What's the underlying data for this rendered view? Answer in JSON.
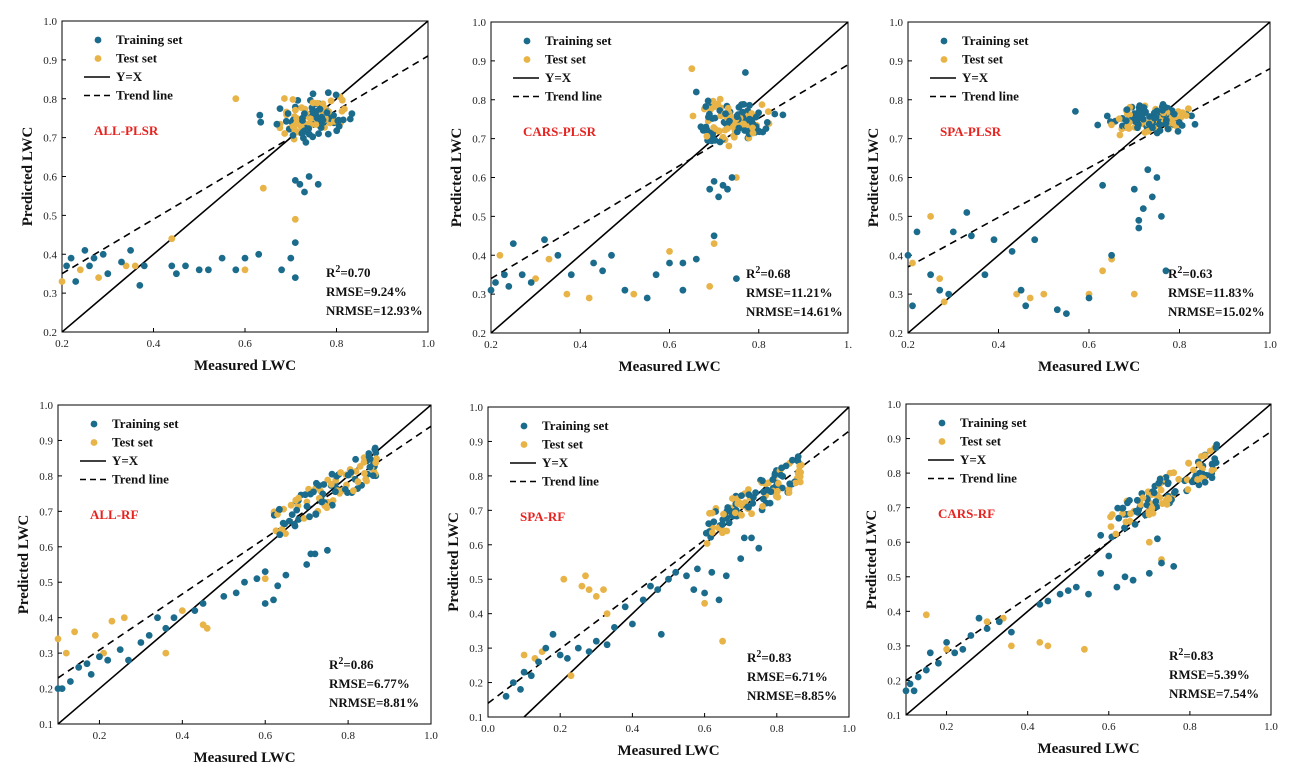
{
  "colors": {
    "training": "#1b6b8c",
    "test": "#e8b347",
    "model_label": "#e8231f",
    "line": "#000000"
  },
  "chart_data": [
    {
      "type": "scatter",
      "model": "ALL-PLSR",
      "xlabel": "Measured LWC",
      "ylabel": "Predicted LWC",
      "xlim": [
        0.2,
        1.0
      ],
      "ylim": [
        0.2,
        1.0
      ],
      "xticks": [
        "0.2",
        "0.4",
        "0.6",
        "0.8",
        "1.0"
      ],
      "yticks": [
        "0.2",
        "0.3",
        "0.4",
        "0.5",
        "0.6",
        "0.7",
        "0.8",
        "0.9",
        "1.0"
      ],
      "legend": [
        "Training set",
        "Test set",
        "Y=X",
        "Trend line"
      ],
      "trend": [
        0.2,
        0.35,
        1.0,
        0.91
      ],
      "stats": {
        "r2_prefix": "R",
        "r2_value": "=0.70",
        "rmse": "RMSE=9.24%",
        "nrmse": "NRMSE=12.93%"
      },
      "main_cluster": {
        "x": [
          0.62,
          0.87
        ],
        "y": [
          0.67,
          0.83
        ],
        "n_train": 70,
        "n_test": 55
      },
      "extra_train": [
        [
          0.21,
          0.37
        ],
        [
          0.22,
          0.39
        ],
        [
          0.23,
          0.33
        ],
        [
          0.25,
          0.41
        ],
        [
          0.27,
          0.39
        ],
        [
          0.29,
          0.4
        ],
        [
          0.3,
          0.35
        ],
        [
          0.33,
          0.38
        ],
        [
          0.35,
          0.41
        ],
        [
          0.37,
          0.32
        ],
        [
          0.44,
          0.37
        ],
        [
          0.45,
          0.35
        ],
        [
          0.47,
          0.37
        ],
        [
          0.5,
          0.36
        ],
        [
          0.52,
          0.36
        ],
        [
          0.55,
          0.39
        ],
        [
          0.58,
          0.36
        ],
        [
          0.6,
          0.39
        ],
        [
          0.63,
          0.4
        ],
        [
          0.68,
          0.36
        ],
        [
          0.71,
          0.34
        ],
        [
          0.71,
          0.43
        ],
        [
          0.72,
          0.58
        ],
        [
          0.73,
          0.56
        ],
        [
          0.74,
          0.6
        ],
        [
          0.71,
          0.59
        ],
        [
          0.76,
          0.58
        ],
        [
          0.7,
          0.39
        ],
        [
          0.26,
          0.37
        ],
        [
          0.38,
          0.37
        ]
      ],
      "extra_test": [
        [
          0.2,
          0.33
        ],
        [
          0.24,
          0.36
        ],
        [
          0.28,
          0.34
        ],
        [
          0.34,
          0.37
        ],
        [
          0.44,
          0.44
        ],
        [
          0.6,
          0.36
        ],
        [
          0.64,
          0.57
        ],
        [
          0.71,
          0.49
        ],
        [
          0.58,
          0.8
        ],
        [
          0.36,
          0.37
        ]
      ]
    },
    {
      "type": "scatter",
      "model": "CARS-PLSR",
      "xlabel": "Measured LWC",
      "ylabel": "Predicted LWC",
      "xlim": [
        0.2,
        1.0
      ],
      "ylim": [
        0.2,
        1.0
      ],
      "xticks": [
        "0.2",
        "0.4",
        "0.6",
        "0.8",
        "1."
      ],
      "yticks": [
        "0.2",
        "0.3",
        "0.4",
        "0.5",
        "0.6",
        "0.7",
        "0.8",
        "0.9",
        "1.0"
      ],
      "legend": [
        "Training set",
        "Test set",
        "Y=X",
        "Trend line"
      ],
      "trend": [
        0.2,
        0.34,
        1.0,
        0.89
      ],
      "stats": {
        "r2_prefix": "R",
        "r2_value": "=0.68",
        "rmse": "RMSE=11.21%",
        "nrmse": "NRMSE=14.61%"
      },
      "main_cluster": {
        "x": [
          0.62,
          0.87
        ],
        "y": [
          0.66,
          0.82
        ],
        "n_train": 70,
        "n_test": 55
      },
      "extra_train": [
        [
          0.2,
          0.31
        ],
        [
          0.21,
          0.33
        ],
        [
          0.23,
          0.35
        ],
        [
          0.24,
          0.32
        ],
        [
          0.25,
          0.43
        ],
        [
          0.27,
          0.35
        ],
        [
          0.29,
          0.33
        ],
        [
          0.32,
          0.44
        ],
        [
          0.35,
          0.4
        ],
        [
          0.38,
          0.35
        ],
        [
          0.43,
          0.38
        ],
        [
          0.45,
          0.36
        ],
        [
          0.47,
          0.4
        ],
        [
          0.5,
          0.31
        ],
        [
          0.55,
          0.29
        ],
        [
          0.57,
          0.35
        ],
        [
          0.6,
          0.38
        ],
        [
          0.63,
          0.38
        ],
        [
          0.66,
          0.39
        ],
        [
          0.7,
          0.45
        ],
        [
          0.71,
          0.55
        ],
        [
          0.72,
          0.58
        ],
        [
          0.73,
          0.57
        ],
        [
          0.74,
          0.6
        ],
        [
          0.75,
          0.34
        ],
        [
          0.69,
          0.57
        ],
        [
          0.7,
          0.59
        ],
        [
          0.66,
          0.82
        ],
        [
          0.63,
          0.31
        ],
        [
          0.77,
          0.87
        ]
      ],
      "extra_test": [
        [
          0.22,
          0.4
        ],
        [
          0.3,
          0.34
        ],
        [
          0.33,
          0.39
        ],
        [
          0.37,
          0.3
        ],
        [
          0.42,
          0.29
        ],
        [
          0.52,
          0.3
        ],
        [
          0.6,
          0.41
        ],
        [
          0.65,
          0.88
        ],
        [
          0.7,
          0.43
        ],
        [
          0.69,
          0.32
        ],
        [
          0.75,
          0.6
        ]
      ]
    },
    {
      "type": "scatter",
      "model": "SPA-PLSR",
      "xlabel": "Measured LWC",
      "ylabel": "Predicted LWC",
      "xlim": [
        0.2,
        1.0
      ],
      "ylim": [
        0.2,
        1.0
      ],
      "xticks": [
        "0.2",
        "0.4",
        "0.6",
        "0.8",
        "1.0"
      ],
      "yticks": [
        "0.2",
        "0.3",
        "0.4",
        "0.5",
        "0.6",
        "0.7",
        "0.8",
        "0.9",
        "1.0"
      ],
      "legend": [
        "Training set",
        "Test set",
        "Y=X",
        "Trend line"
      ],
      "trend": [
        0.2,
        0.37,
        1.0,
        0.88
      ],
      "stats": {
        "r2_prefix": "R",
        "r2_value": "=0.63",
        "rmse": "RMSE=11.83%",
        "nrmse": "NRMSE=15.02%"
      },
      "main_cluster": {
        "x": [
          0.6,
          0.87
        ],
        "y": [
          0.7,
          0.8
        ],
        "n_train": 75,
        "n_test": 55
      },
      "extra_train": [
        [
          0.2,
          0.4
        ],
        [
          0.21,
          0.27
        ],
        [
          0.22,
          0.46
        ],
        [
          0.25,
          0.35
        ],
        [
          0.27,
          0.31
        ],
        [
          0.29,
          0.3
        ],
        [
          0.3,
          0.46
        ],
        [
          0.33,
          0.51
        ],
        [
          0.34,
          0.45
        ],
        [
          0.37,
          0.35
        ],
        [
          0.43,
          0.41
        ],
        [
          0.45,
          0.31
        ],
        [
          0.46,
          0.27
        ],
        [
          0.48,
          0.44
        ],
        [
          0.53,
          0.26
        ],
        [
          0.55,
          0.25
        ],
        [
          0.6,
          0.29
        ],
        [
          0.63,
          0.58
        ],
        [
          0.65,
          0.4
        ],
        [
          0.7,
          0.57
        ],
        [
          0.71,
          0.49
        ],
        [
          0.72,
          0.52
        ],
        [
          0.73,
          0.62
        ],
        [
          0.74,
          0.55
        ],
        [
          0.75,
          0.6
        ],
        [
          0.76,
          0.5
        ],
        [
          0.77,
          0.36
        ],
        [
          0.57,
          0.77
        ],
        [
          0.71,
          0.47
        ],
        [
          0.39,
          0.44
        ]
      ],
      "extra_test": [
        [
          0.21,
          0.38
        ],
        [
          0.25,
          0.5
        ],
        [
          0.27,
          0.34
        ],
        [
          0.28,
          0.28
        ],
        [
          0.44,
          0.3
        ],
        [
          0.47,
          0.29
        ],
        [
          0.5,
          0.3
        ],
        [
          0.6,
          0.3
        ],
        [
          0.63,
          0.36
        ],
        [
          0.7,
          0.3
        ],
        [
          0.65,
          0.39
        ]
      ]
    },
    {
      "type": "scatter",
      "model": "ALL-RF",
      "xlabel": "Measured LWC",
      "ylabel": "Predicted LWC",
      "xlim": [
        0.1,
        1.0
      ],
      "ylim": [
        0.1,
        1.0
      ],
      "xticks": [
        "0.2",
        "0.4",
        "0.6",
        "0.8",
        "1.0"
      ],
      "yticks": [
        "0.1",
        "0.2",
        "0.3",
        "0.4",
        "0.5",
        "0.6",
        "0.7",
        "0.8",
        "0.9",
        "1.0"
      ],
      "legend": [
        "Training set",
        "Test set",
        "Y=X",
        "Trend line"
      ],
      "trend": [
        0.1,
        0.23,
        1.0,
        0.94
      ],
      "stats": {
        "r2_prefix": "R",
        "r2_value": "=0.86",
        "rmse": "RMSE=6.77%",
        "nrmse": "NRMSE=8.81%"
      },
      "main_cluster": {
        "x": [
          0.62,
          0.87
        ],
        "y": [
          0.66,
          0.84
        ],
        "n_train": 60,
        "n_test": 50,
        "diagonal": true
      },
      "extra_train": [
        [
          0.1,
          0.2
        ],
        [
          0.11,
          0.2
        ],
        [
          0.13,
          0.22
        ],
        [
          0.15,
          0.26
        ],
        [
          0.17,
          0.27
        ],
        [
          0.18,
          0.24
        ],
        [
          0.2,
          0.29
        ],
        [
          0.22,
          0.28
        ],
        [
          0.25,
          0.31
        ],
        [
          0.27,
          0.28
        ],
        [
          0.3,
          0.33
        ],
        [
          0.32,
          0.35
        ],
        [
          0.34,
          0.4
        ],
        [
          0.36,
          0.37
        ],
        [
          0.38,
          0.4
        ],
        [
          0.43,
          0.42
        ],
        [
          0.45,
          0.44
        ],
        [
          0.5,
          0.46
        ],
        [
          0.53,
          0.47
        ],
        [
          0.55,
          0.5
        ],
        [
          0.58,
          0.51
        ],
        [
          0.6,
          0.53
        ],
        [
          0.62,
          0.45
        ],
        [
          0.63,
          0.49
        ],
        [
          0.65,
          0.52
        ],
        [
          0.7,
          0.55
        ],
        [
          0.72,
          0.58
        ],
        [
          0.75,
          0.59
        ],
        [
          0.71,
          0.58
        ],
        [
          0.6,
          0.44
        ]
      ],
      "extra_test": [
        [
          0.1,
          0.34
        ],
        [
          0.12,
          0.3
        ],
        [
          0.14,
          0.36
        ],
        [
          0.19,
          0.35
        ],
        [
          0.21,
          0.3
        ],
        [
          0.23,
          0.39
        ],
        [
          0.26,
          0.4
        ],
        [
          0.36,
          0.3
        ],
        [
          0.4,
          0.42
        ],
        [
          0.45,
          0.38
        ],
        [
          0.46,
          0.37
        ],
        [
          0.6,
          0.51
        ]
      ]
    },
    {
      "type": "scatter",
      "model": "SPA-RF",
      "xlabel": "Measured LWC",
      "ylabel": "Predicted LWC",
      "xlim": [
        0.0,
        1.0
      ],
      "ylim": [
        0.1,
        1.0
      ],
      "xticks": [
        "0.0",
        "0.2",
        "0.4",
        "0.6",
        "0.8",
        "1.0"
      ],
      "yticks": [
        "0.1",
        "0.2",
        "0.3",
        "0.4",
        "0.5",
        "0.6",
        "0.7",
        "0.8",
        "0.9",
        "1.0"
      ],
      "legend": [
        "Training set",
        "Test set",
        "Y=X",
        "Trend line"
      ],
      "trend": [
        0.0,
        0.14,
        1.0,
        0.93
      ],
      "stats": {
        "r2_prefix": "R",
        "r2_value": "=0.83",
        "rmse": "RMSE=6.71%",
        "nrmse": "NRMSE=8.85%"
      },
      "main_cluster": {
        "x": [
          0.6,
          0.87
        ],
        "y": [
          0.64,
          0.82
        ],
        "n_train": 60,
        "n_test": 55,
        "diagonal": true
      },
      "extra_train": [
        [
          0.05,
          0.16
        ],
        [
          0.07,
          0.2
        ],
        [
          0.09,
          0.18
        ],
        [
          0.1,
          0.23
        ],
        [
          0.12,
          0.22
        ],
        [
          0.14,
          0.26
        ],
        [
          0.16,
          0.3
        ],
        [
          0.18,
          0.34
        ],
        [
          0.2,
          0.28
        ],
        [
          0.22,
          0.27
        ],
        [
          0.25,
          0.3
        ],
        [
          0.28,
          0.29
        ],
        [
          0.3,
          0.32
        ],
        [
          0.33,
          0.31
        ],
        [
          0.35,
          0.36
        ],
        [
          0.38,
          0.42
        ],
        [
          0.4,
          0.37
        ],
        [
          0.43,
          0.44
        ],
        [
          0.45,
          0.48
        ],
        [
          0.47,
          0.47
        ],
        [
          0.5,
          0.5
        ],
        [
          0.52,
          0.52
        ],
        [
          0.55,
          0.51
        ],
        [
          0.58,
          0.53
        ],
        [
          0.6,
          0.46
        ],
        [
          0.62,
          0.52
        ],
        [
          0.66,
          0.51
        ],
        [
          0.7,
          0.56
        ],
        [
          0.71,
          0.62
        ],
        [
          0.73,
          0.62
        ],
        [
          0.75,
          0.59
        ],
        [
          0.57,
          0.47
        ],
        [
          0.48,
          0.34
        ],
        [
          0.64,
          0.44
        ]
      ],
      "extra_test": [
        [
          0.1,
          0.28
        ],
        [
          0.13,
          0.27
        ],
        [
          0.15,
          0.29
        ],
        [
          0.21,
          0.5
        ],
        [
          0.23,
          0.22
        ],
        [
          0.26,
          0.48
        ],
        [
          0.27,
          0.51
        ],
        [
          0.28,
          0.47
        ],
        [
          0.3,
          0.45
        ],
        [
          0.32,
          0.47
        ],
        [
          0.6,
          0.43
        ],
        [
          0.65,
          0.32
        ],
        [
          0.33,
          0.4
        ]
      ]
    },
    {
      "type": "scatter",
      "model": "CARS-RF",
      "xlabel": "Measured LWC",
      "ylabel": "Predicted LWC",
      "xlim": [
        0.1,
        1.0
      ],
      "ylim": [
        0.1,
        1.0
      ],
      "xticks": [
        "0.2",
        "0.4",
        "0.6",
        "0.8",
        "1.0"
      ],
      "yticks": [
        "0.1",
        "0.2",
        "0.3",
        "0.4",
        "0.5",
        "0.6",
        "0.7",
        "0.8",
        "0.9",
        "1.0"
      ],
      "legend": [
        "Training set",
        "Test set",
        "Y=X",
        "Trend line"
      ],
      "trend": [
        0.1,
        0.2,
        1.0,
        0.92
      ],
      "stats": {
        "r2_prefix": "R",
        "r2_value": "=0.83",
        "rmse": "RMSE=5.39%",
        "nrmse": "NRMSE=7.54%"
      },
      "main_cluster": {
        "x": [
          0.6,
          0.87
        ],
        "y": [
          0.65,
          0.84
        ],
        "n_train": 60,
        "n_test": 55,
        "diagonal": true
      },
      "extra_train": [
        [
          0.1,
          0.17
        ],
        [
          0.11,
          0.19
        ],
        [
          0.13,
          0.21
        ],
        [
          0.15,
          0.23
        ],
        [
          0.16,
          0.28
        ],
        [
          0.18,
          0.25
        ],
        [
          0.2,
          0.31
        ],
        [
          0.22,
          0.28
        ],
        [
          0.24,
          0.29
        ],
        [
          0.26,
          0.33
        ],
        [
          0.28,
          0.38
        ],
        [
          0.3,
          0.35
        ],
        [
          0.33,
          0.37
        ],
        [
          0.36,
          0.34
        ],
        [
          0.43,
          0.42
        ],
        [
          0.45,
          0.43
        ],
        [
          0.48,
          0.45
        ],
        [
          0.5,
          0.46
        ],
        [
          0.52,
          0.47
        ],
        [
          0.55,
          0.45
        ],
        [
          0.58,
          0.51
        ],
        [
          0.6,
          0.56
        ],
        [
          0.62,
          0.47
        ],
        [
          0.64,
          0.5
        ],
        [
          0.66,
          0.49
        ],
        [
          0.7,
          0.51
        ],
        [
          0.73,
          0.54
        ],
        [
          0.76,
          0.53
        ],
        [
          0.72,
          0.61
        ],
        [
          0.58,
          0.62
        ],
        [
          0.12,
          0.17
        ]
      ],
      "extra_test": [
        [
          0.15,
          0.39
        ],
        [
          0.2,
          0.29
        ],
        [
          0.3,
          0.37
        ],
        [
          0.34,
          0.38
        ],
        [
          0.36,
          0.3
        ],
        [
          0.43,
          0.31
        ],
        [
          0.45,
          0.3
        ],
        [
          0.54,
          0.29
        ],
        [
          0.73,
          0.55
        ],
        [
          0.7,
          0.6
        ]
      ]
    }
  ]
}
